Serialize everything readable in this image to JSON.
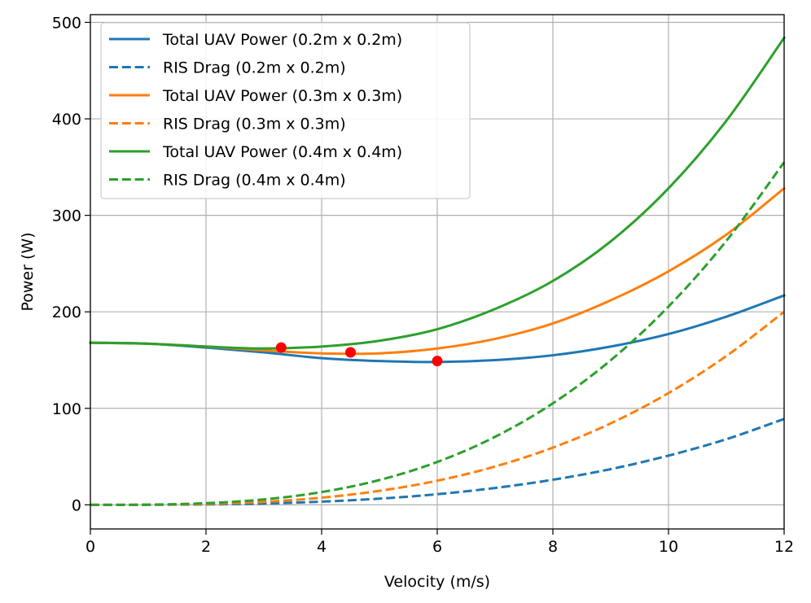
{
  "chart_data": {
    "type": "line",
    "title": "",
    "xlabel": "Velocity (m/s)",
    "ylabel": "Power (W)",
    "xlim": [
      0,
      12
    ],
    "ylim": [
      -25,
      508
    ],
    "xticks": [
      0,
      2,
      4,
      6,
      8,
      10,
      12
    ],
    "yticks": [
      0,
      100,
      200,
      300,
      400,
      500
    ],
    "grid": true,
    "legend_position": "top-left",
    "x": [
      0,
      1,
      2,
      3,
      4,
      5,
      6,
      7,
      8,
      9,
      10,
      11,
      12
    ],
    "series": [
      {
        "name": "Total UAV Power (0.2m x 0.2m)",
        "color": "#1f77b4",
        "style": "solid",
        "values": [
          168,
          167,
          163,
          158,
          152,
          149,
          148,
          150,
          155,
          164,
          177,
          195,
          217
        ]
      },
      {
        "name": "RIS Drag (0.2m x 0.2m)",
        "color": "#1f77b4",
        "style": "dashed",
        "values": [
          0,
          0.05,
          0.4,
          1.4,
          3.3,
          6.4,
          11,
          17.5,
          26,
          37,
          51,
          68,
          89
        ]
      },
      {
        "name": "Total UAV Power (0.3m x 0.3m)",
        "color": "#ff7f0e",
        "style": "solid",
        "values": [
          168,
          167,
          164,
          160,
          157,
          157,
          162,
          172,
          188,
          212,
          242,
          280,
          328
        ]
      },
      {
        "name": "RIS Drag (0.3m x 0.3m)",
        "color": "#ff7f0e",
        "style": "dashed",
        "values": [
          0,
          0.1,
          0.9,
          3.1,
          7.4,
          14.5,
          25,
          39.7,
          59.3,
          84.4,
          115.8,
          154.2,
          200
        ]
      },
      {
        "name": "Total UAV Power (0.4m x 0.4m)",
        "color": "#2ca02c",
        "style": "solid",
        "values": [
          168,
          167,
          164,
          162,
          164,
          170,
          182,
          203,
          232,
          273,
          328,
          398,
          484
        ]
      },
      {
        "name": "RIS Drag (0.4m x 0.4m)",
        "color": "#2ca02c",
        "style": "dashed",
        "values": [
          0,
          0.2,
          1.7,
          5.6,
          13.2,
          25.7,
          44.4,
          70.5,
          105.2,
          149.8,
          205.5,
          273.5,
          355
        ]
      }
    ],
    "markers": [
      {
        "x": 3.3,
        "y": 163,
        "color": "#ff0000"
      },
      {
        "x": 4.5,
        "y": 158,
        "color": "#ff0000"
      },
      {
        "x": 6.0,
        "y": 149,
        "color": "#ff0000"
      }
    ]
  }
}
